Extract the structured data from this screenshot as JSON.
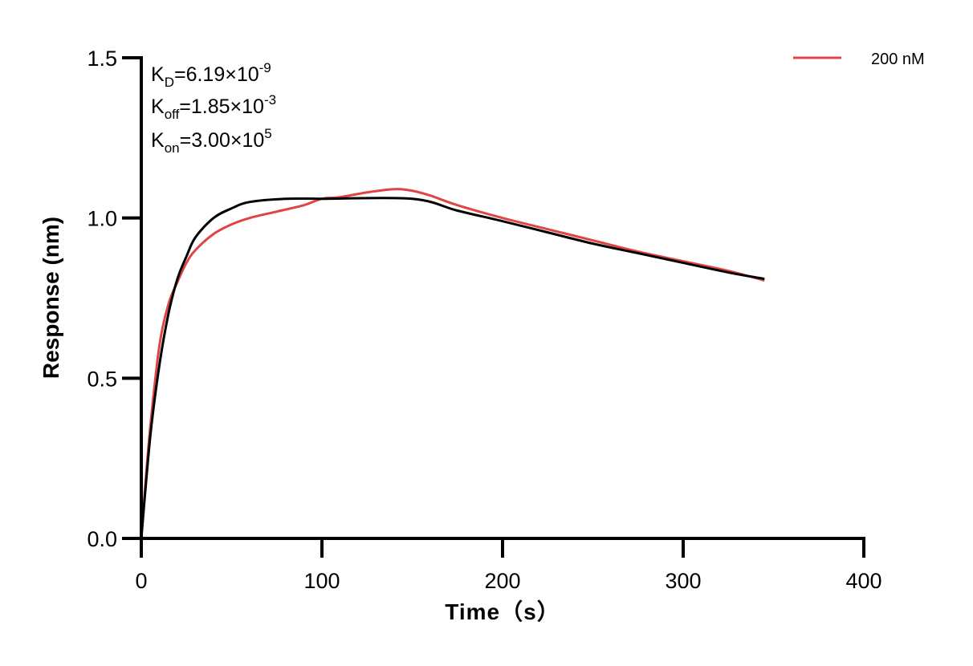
{
  "chart_data": {
    "type": "line",
    "title": "",
    "xlabel": "Time（s）",
    "ylabel": "Response (nm)",
    "xlim": [
      0,
      400
    ],
    "ylim": [
      0,
      1.5
    ],
    "xticks": [
      0,
      100,
      200,
      300,
      400
    ],
    "xtick_labels": [
      "0",
      "100",
      "200",
      "300",
      "400"
    ],
    "yticks": [
      0,
      0.5,
      1.0,
      1.5
    ],
    "ytick_labels": [
      "0.0",
      "0.5",
      "1.0",
      "1.5"
    ],
    "grid": false,
    "legend_position": "top-right",
    "annotations": {
      "kd": {
        "base": "K",
        "sub": "D",
        "value": "=6.19×10",
        "exp": "-9"
      },
      "koff": {
        "base": "K",
        "sub": "off",
        "value": "=1.85×10",
        "exp": "-3"
      },
      "kon": {
        "base": "K",
        "sub": "on",
        "value": "=3.00×10",
        "exp": "5"
      }
    },
    "series": [
      {
        "name": "200 nM",
        "color": "#e04444",
        "x": [
          0,
          2,
          5,
          10,
          15,
          20,
          25,
          30,
          40,
          50,
          60,
          75,
          90,
          100,
          110,
          125,
          140,
          150,
          160,
          175,
          200,
          225,
          250,
          275,
          300,
          325,
          345
        ],
        "y": [
          0,
          0.15,
          0.35,
          0.6,
          0.73,
          0.8,
          0.86,
          0.9,
          0.95,
          0.98,
          1.0,
          1.02,
          1.04,
          1.06,
          1.065,
          1.08,
          1.09,
          1.085,
          1.07,
          1.04,
          1.0,
          0.965,
          0.93,
          0.895,
          0.865,
          0.835,
          0.805
        ]
      },
      {
        "color": "#000000",
        "x": [
          0,
          5,
          10,
          15,
          20,
          25,
          30,
          40,
          50,
          60,
          80,
          100,
          150,
          175,
          200,
          225,
          250,
          275,
          300,
          325,
          345
        ],
        "y": [
          0,
          0.32,
          0.54,
          0.7,
          0.81,
          0.88,
          0.94,
          1.0,
          1.03,
          1.05,
          1.06,
          1.06,
          1.06,
          1.023,
          0.99,
          0.955,
          0.92,
          0.89,
          0.86,
          0.83,
          0.81
        ]
      }
    ]
  }
}
